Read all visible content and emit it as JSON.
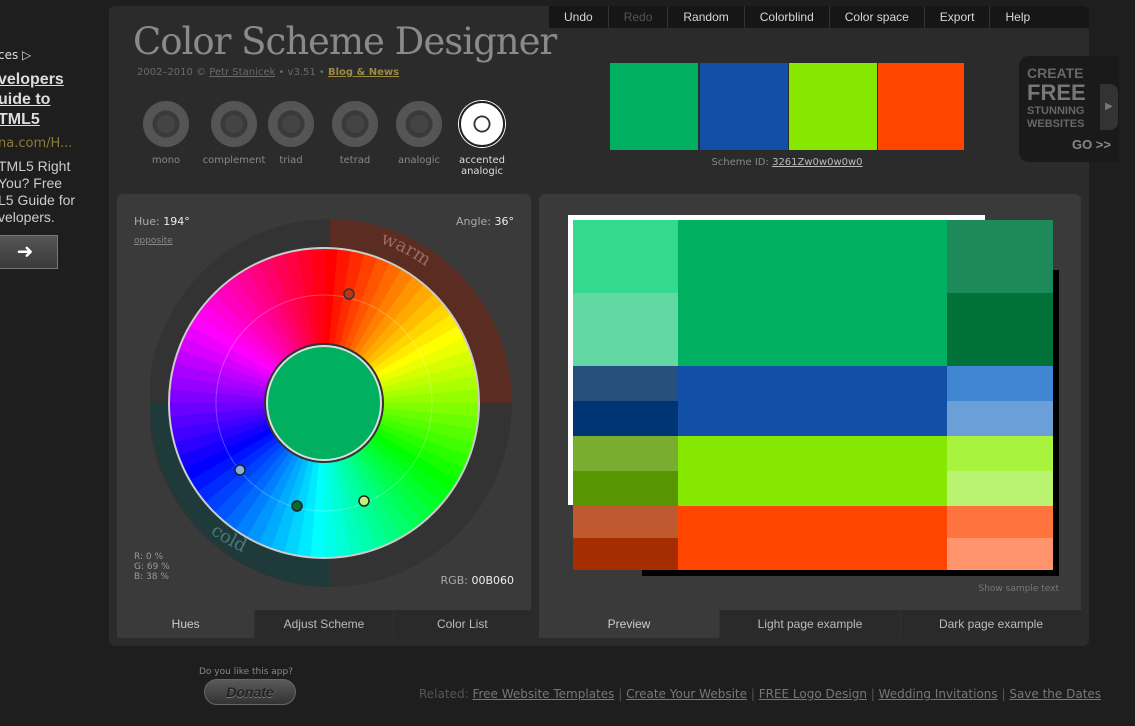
{
  "ad": {
    "source": "ces ▷",
    "headline_1": "velopers",
    "headline_2": "uide to",
    "headline_3": "TML5",
    "url": "na.com/H...",
    "body_1": "TML5 Right",
    "body_2": "You? Free",
    "body_3": "L5 Guide for",
    "body_4": "velopers.",
    "button_icon": "arrow-right-icon"
  },
  "app": {
    "title": "Color Scheme Designer",
    "years": "2002–2010 ©",
    "author": "Petr Stanicek",
    "version": "• v3.51 •",
    "blog": "Blog & News"
  },
  "menu": [
    "Undo",
    "Redo",
    "Random",
    "Colorblind",
    "Color space",
    "Export",
    "Help"
  ],
  "schemes": [
    {
      "label": "mono"
    },
    {
      "label": "complement"
    },
    {
      "label": "triad"
    },
    {
      "label": "tetrad"
    },
    {
      "label": "analogic"
    },
    {
      "label_1": "accented",
      "label_2": "analogic"
    }
  ],
  "swatches": [
    "#00B060",
    "#1150A6",
    "#86E700",
    "#FF4500"
  ],
  "scheme_id_label": "Scheme ID:",
  "scheme_id": "3261Zw0w0w0w0",
  "side_ad": {
    "l1": "CREATE",
    "l2": "FREE",
    "l3": "STUNNING",
    "l4": "WEBSITES",
    "go": "GO >>"
  },
  "hues": {
    "hue_label": "Hue:",
    "hue": "194°",
    "angle_label": "Angle:",
    "angle": "36°",
    "opposite": "opposite",
    "warm": "warm",
    "cold": "cold",
    "r": "R:   0 %",
    "g": "G: 69 %",
    "b": "B: 38 %",
    "rgb_label": "RGB:",
    "rgb": "00B060",
    "center_color": "#00B060"
  },
  "left_tabs": [
    "Hues",
    "Adjust Scheme",
    "Color List"
  ],
  "right_tabs": [
    "Preview",
    "Light page example",
    "Dark page example"
  ],
  "show_sample": "Show sample text",
  "preview": {
    "rows": [
      {
        "left": [
          "#33D98F",
          "#62D8A3"
        ],
        "mid": "#00B060",
        "right": [
          "#1F8A59",
          "#007239"
        ]
      },
      {
        "left": [
          "#27507E",
          "#003575"
        ],
        "mid": "#1150A6",
        "right": [
          "#4186D3",
          "#6A9FD8"
        ]
      },
      {
        "left": [
          "#78AD2F",
          "#579600"
        ],
        "mid": "#86E700",
        "right": [
          "#A7F33D",
          "#BAF36F"
        ]
      },
      {
        "left": [
          "#BF5A30",
          "#A52D00"
        ],
        "mid": "#FF4500",
        "right": [
          "#FF733F",
          "#FF946D"
        ]
      }
    ]
  },
  "donate": {
    "question": "Do you like this app?",
    "label": "Donate"
  },
  "footer": {
    "related": "Related:",
    "links": [
      "Free Website Templates",
      "Create Your Website",
      "FREE Logo Design",
      "Wedding Invitations",
      "Save the Dates"
    ]
  }
}
